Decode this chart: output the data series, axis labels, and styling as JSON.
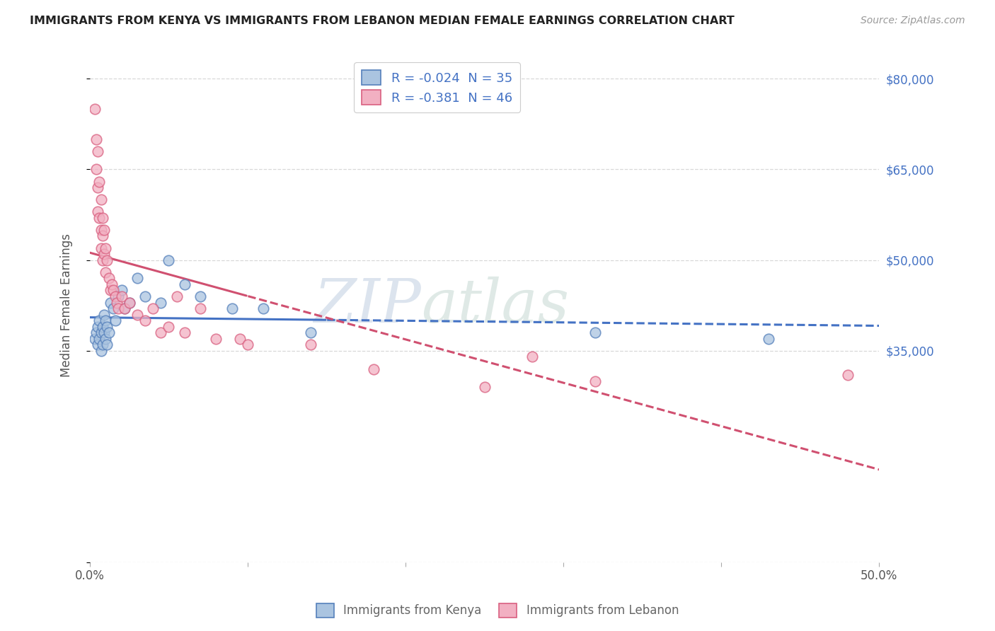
{
  "title": "IMMIGRANTS FROM KENYA VS IMMIGRANTS FROM LEBANON MEDIAN FEMALE EARNINGS CORRELATION CHART",
  "source": "Source: ZipAtlas.com",
  "ylabel": "Median Female Earnings",
  "y_ticks": [
    0,
    35000,
    50000,
    65000,
    80000
  ],
  "y_tick_labels": [
    "",
    "$35,000",
    "$50,000",
    "$65,000",
    "$80,000"
  ],
  "x_min": 0.0,
  "x_max": 50.0,
  "y_min": 0,
  "y_max": 85000,
  "kenya_color": "#aac4e0",
  "kenya_edge_color": "#5580bb",
  "lebanon_color": "#f2b0c2",
  "lebanon_edge_color": "#d96080",
  "kenya_line_color": "#4472c4",
  "lebanon_line_color": "#d05070",
  "kenya_R": -0.024,
  "kenya_N": 35,
  "lebanon_R": -0.381,
  "lebanon_N": 46,
  "legend_label_kenya": "Immigrants from Kenya",
  "legend_label_lebanon": "Immigrants from Lebanon",
  "watermark_zip": "ZIP",
  "watermark_atlas": "atlas",
  "background_color": "#ffffff",
  "grid_color": "#d8d8d8",
  "title_color": "#222222",
  "axis_label_color": "#555555",
  "right_axis_color": "#4472c4",
  "kenya_solid_end": 15.0,
  "lebanon_solid_end": 10.0,
  "kenya_x": [
    0.3,
    0.4,
    0.5,
    0.5,
    0.6,
    0.6,
    0.7,
    0.7,
    0.8,
    0.8,
    0.9,
    0.9,
    1.0,
    1.0,
    1.1,
    1.1,
    1.2,
    1.3,
    1.5,
    1.6,
    1.8,
    2.0,
    2.2,
    2.5,
    3.0,
    3.5,
    4.5,
    5.0,
    6.0,
    7.0,
    9.0,
    11.0,
    14.0,
    32.0,
    43.0
  ],
  "kenya_y": [
    37000,
    38000,
    39000,
    36000,
    40000,
    37000,
    38000,
    35000,
    39000,
    36000,
    41000,
    38000,
    40000,
    37000,
    39000,
    36000,
    38000,
    43000,
    42000,
    40000,
    44000,
    45000,
    42000,
    43000,
    47000,
    44000,
    43000,
    50000,
    46000,
    44000,
    42000,
    42000,
    38000,
    38000,
    37000
  ],
  "lebanon_x": [
    0.3,
    0.4,
    0.4,
    0.5,
    0.5,
    0.5,
    0.6,
    0.6,
    0.7,
    0.7,
    0.7,
    0.8,
    0.8,
    0.8,
    0.9,
    0.9,
    1.0,
    1.0,
    1.1,
    1.2,
    1.3,
    1.4,
    1.5,
    1.6,
    1.7,
    1.8,
    2.0,
    2.2,
    2.5,
    3.0,
    3.5,
    4.0,
    4.5,
    5.0,
    5.5,
    6.0,
    7.0,
    8.0,
    9.5,
    10.0,
    14.0,
    18.0,
    25.0,
    28.0,
    32.0,
    48.0
  ],
  "lebanon_y": [
    75000,
    70000,
    65000,
    68000,
    62000,
    58000,
    63000,
    57000,
    60000,
    55000,
    52000,
    57000,
    54000,
    50000,
    55000,
    51000,
    52000,
    48000,
    50000,
    47000,
    45000,
    46000,
    45000,
    44000,
    43000,
    42000,
    44000,
    42000,
    43000,
    41000,
    40000,
    42000,
    38000,
    39000,
    44000,
    38000,
    42000,
    37000,
    37000,
    36000,
    36000,
    32000,
    29000,
    34000,
    30000,
    31000
  ]
}
